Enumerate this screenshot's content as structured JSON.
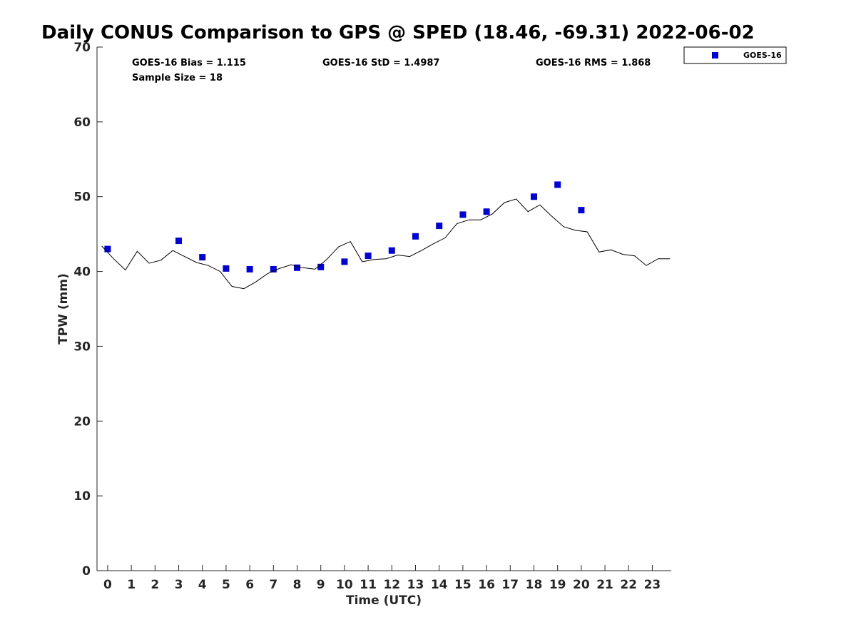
{
  "chart_data": {
    "type": "scatter",
    "title": "Daily CONUS Comparison to GPS @ SPED (18.46, -69.31) 2022-06-02",
    "xlabel": "Time (UTC)",
    "ylabel": "TPW (mm)",
    "xlim": [
      -0.45,
      23.8
    ],
    "ylim": [
      0,
      70
    ],
    "xticks": [
      0,
      1,
      2,
      3,
      4,
      5,
      6,
      7,
      8,
      9,
      10,
      11,
      12,
      13,
      14,
      15,
      16,
      17,
      18,
      19,
      20,
      21,
      22,
      23
    ],
    "yticks": [
      0,
      10,
      20,
      30,
      40,
      50,
      60,
      70
    ],
    "grid": false,
    "legend_position": "top-right (outside axes)",
    "stats": {
      "bias": "GOES-16 Bias = 1.115",
      "std": "GOES-16 StD = 1.4987",
      "rms": "GOES-16 RMS = 1.868",
      "sample": "Sample Size = 18"
    },
    "series": [
      {
        "name": "GOES-16",
        "kind": "scatter",
        "color": "#0000dd",
        "marker": "square",
        "x": [
          0,
          3,
          4,
          5,
          6,
          7,
          8,
          9,
          10,
          11,
          12,
          13,
          14,
          15,
          16,
          18,
          19,
          20
        ],
        "y": [
          43.0,
          44.1,
          41.9,
          40.4,
          40.3,
          40.3,
          40.5,
          40.6,
          41.3,
          42.1,
          42.8,
          44.7,
          46.1,
          47.6,
          48.0,
          50.0,
          51.6,
          48.2
        ]
      },
      {
        "kind": "line",
        "color": "#000000",
        "x": [
          -0.25,
          0.25,
          0.75,
          1.25,
          1.75,
          2.25,
          2.75,
          3.25,
          3.75,
          4.25,
          4.75,
          5.25,
          5.75,
          6.25,
          6.75,
          7.25,
          7.75,
          8.25,
          8.75,
          9.25,
          9.75,
          10.25,
          10.75,
          11.25,
          11.75,
          12.25,
          12.75,
          13.25,
          13.75,
          14.25,
          14.75,
          15.25,
          15.75,
          16.25,
          16.75,
          17.25,
          17.75,
          18.25,
          18.75,
          19.25,
          19.75,
          20.25,
          20.75,
          21.25,
          21.75,
          22.25,
          22.75,
          23.25,
          23.75
        ],
        "y": [
          43.4,
          41.7,
          40.2,
          42.7,
          41.1,
          41.5,
          42.8,
          42.0,
          41.2,
          40.8,
          40.0,
          38.0,
          37.7,
          38.6,
          39.7,
          40.4,
          40.9,
          40.5,
          40.3,
          41.6,
          43.3,
          44.0,
          41.3,
          41.6,
          41.7,
          42.2,
          42.0,
          42.8,
          43.7,
          44.5,
          46.4,
          46.9,
          46.9,
          47.7,
          49.2,
          49.7,
          48.0,
          48.9,
          47.4,
          46.0,
          45.5,
          45.3,
          42.6,
          42.9,
          42.3,
          42.1,
          40.8,
          41.7,
          41.7
        ]
      }
    ]
  }
}
